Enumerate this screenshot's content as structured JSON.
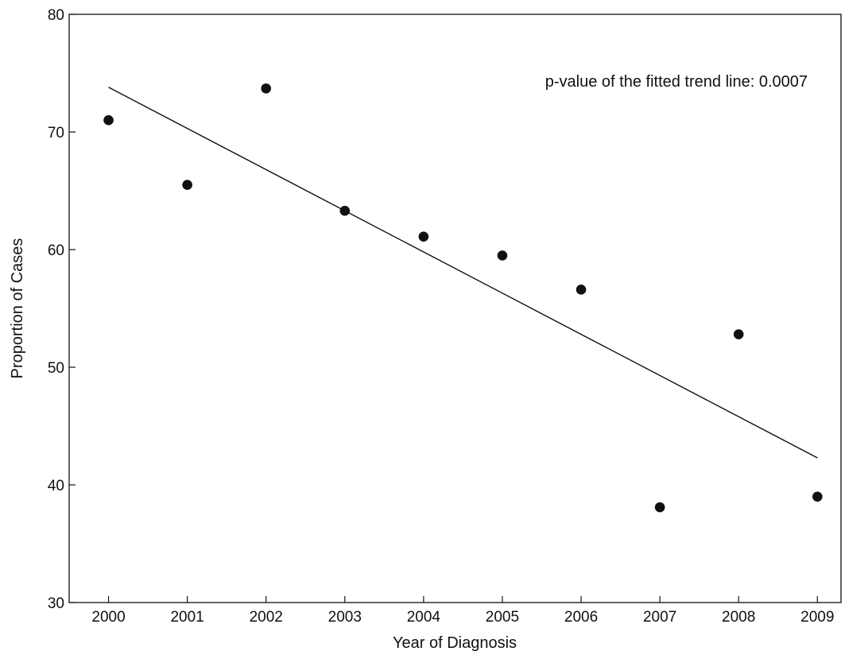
{
  "chart_data": {
    "type": "scatter",
    "title": "",
    "xlabel": "Year of Diagnosis",
    "ylabel": "Proportion of Cases",
    "xlim": [
      1999.5,
      2009.3
    ],
    "ylim": [
      30,
      80
    ],
    "yticks": [
      30,
      40,
      50,
      60,
      70,
      80
    ],
    "xticks": [
      2000,
      2001,
      2002,
      2003,
      2004,
      2005,
      2006,
      2007,
      2008,
      2009
    ],
    "grid": false,
    "legend": "none",
    "series": [
      {
        "x": [
          2000,
          2001,
          2002,
          2003,
          2004,
          2005,
          2006,
          2007,
          2008,
          2009
        ],
        "values": [
          71.0,
          65.5,
          73.7,
          63.3,
          61.1,
          59.5,
          56.6,
          38.1,
          52.8,
          39.0
        ]
      }
    ],
    "trend_line": {
      "x": [
        2000,
        2009
      ],
      "y": [
        73.8,
        42.3
      ]
    },
    "annotation": "p-value of the fitted trend line:  0.0007",
    "colors": {
      "marker": "#111111",
      "line": "#111111",
      "axis": "#111111"
    }
  }
}
